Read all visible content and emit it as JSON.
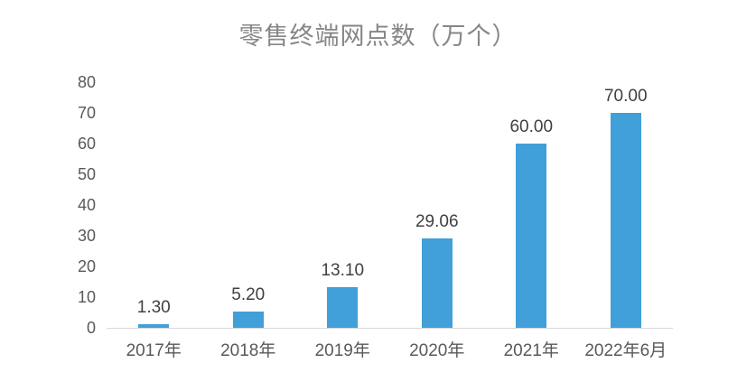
{
  "chart_data": {
    "type": "bar",
    "title": "零售终端网点数（万个）",
    "categories": [
      "2017年",
      "2018年",
      "2019年",
      "2020年",
      "2021年",
      "2022年6月"
    ],
    "values": [
      1.3,
      5.2,
      13.1,
      29.06,
      60.0,
      70.0
    ],
    "data_labels": [
      "1.30",
      "5.20",
      "13.10",
      "29.06",
      "60.00",
      "70.00"
    ],
    "xlabel": "",
    "ylabel": "",
    "ylim": [
      0,
      80
    ],
    "y_ticks": [
      0,
      10,
      20,
      30,
      40,
      50,
      60,
      70,
      80
    ],
    "grid": false,
    "legend_position": "none",
    "colors": {
      "bar": "#419fd9",
      "axis_line": "#d9d9d9",
      "title_text": "#868686",
      "tick_text": "#595959",
      "data_label_text": "#404040",
      "background": "#ffffff"
    }
  }
}
